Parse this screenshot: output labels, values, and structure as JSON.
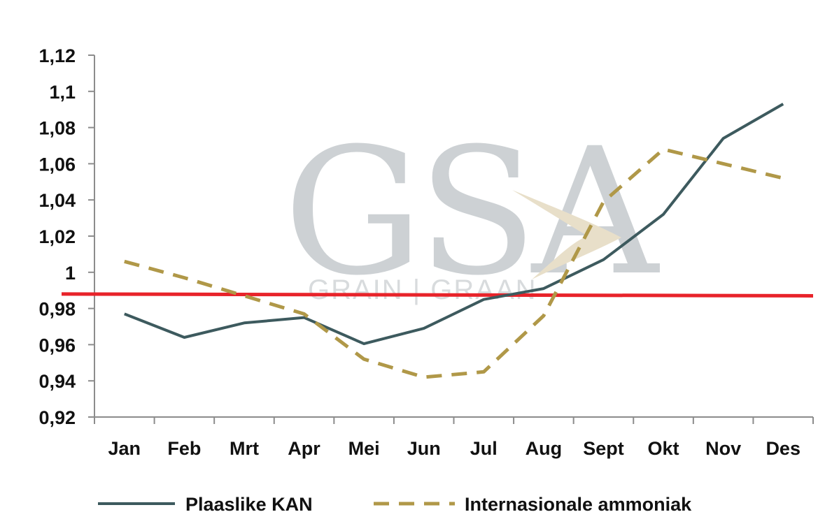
{
  "chart_data": {
    "type": "line",
    "title": "",
    "xlabel": "",
    "ylabel": "",
    "categories": [
      "Jan",
      "Feb",
      "Mrt",
      "Apr",
      "Mei",
      "Jun",
      "Jul",
      "Aug",
      "Sept",
      "Okt",
      "Nov",
      "Des"
    ],
    "ylim": [
      0.92,
      1.12
    ],
    "y_ticks": [
      "0,92",
      "0,94",
      "0,96",
      "0,98",
      "1",
      "1,02",
      "1,04",
      "1,06",
      "1,08",
      "1,1",
      "1,12"
    ],
    "grid": false,
    "legend_position": "bottom",
    "series": [
      {
        "name": "Plaaslike KAN",
        "style": "solid",
        "color": "#3d5a5e",
        "values": [
          0.977,
          0.964,
          0.972,
          0.975,
          0.9605,
          0.969,
          0.985,
          0.991,
          1.007,
          1.032,
          1.074,
          1.093
        ]
      },
      {
        "name": "Internasionale ammoniak",
        "style": "dashed",
        "color": "#b09848",
        "values": [
          1.006,
          0.997,
          0.987,
          0.977,
          0.952,
          0.942,
          0.945,
          0.976,
          1.039,
          1.068,
          1.06,
          1.052
        ]
      }
    ],
    "reference_line": {
      "color": "#e8232a",
      "y_start": 0.988,
      "y_end": 0.987
    }
  },
  "watermark": {
    "logo_text": "GSA",
    "tagline": "GRAIN | GRAAN",
    "color": "#c8cdd0",
    "accent_color": "#e6dcc4"
  }
}
